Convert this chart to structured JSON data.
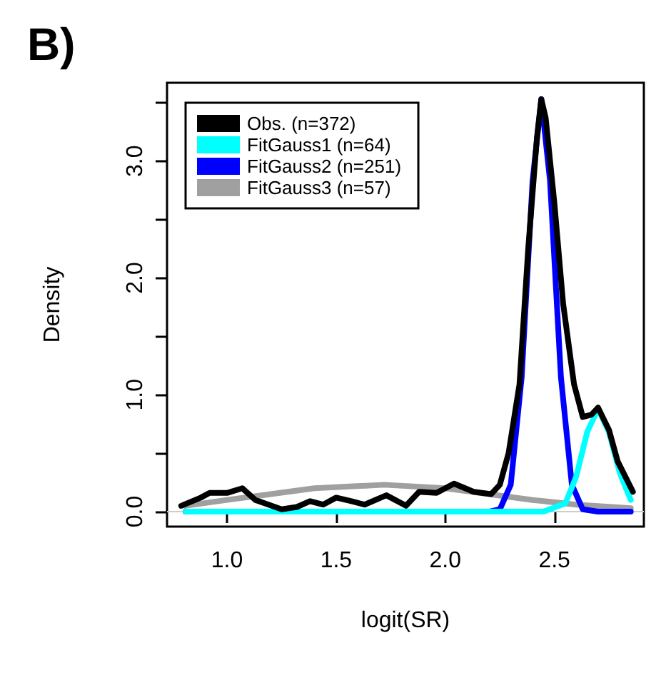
{
  "chart_data": {
    "type": "line",
    "title": "B)",
    "xlabel": "logit(SR)",
    "ylabel": "Density",
    "xlim": [
      0.725,
      2.91
    ],
    "ylim": [
      -0.128,
      3.67
    ],
    "xticks": [
      {
        "value": 1,
        "label": "1.0"
      },
      {
        "value": 1.5,
        "label": "1.5"
      },
      {
        "value": 2,
        "label": "2.0"
      },
      {
        "value": 2.5,
        "label": "2.5"
      }
    ],
    "yticks": [
      {
        "value": 0,
        "label": "0.0"
      },
      {
        "value": 0.5,
        "label": null
      },
      {
        "value": 1,
        "label": "1.0"
      },
      {
        "value": 1.5,
        "label": null
      },
      {
        "value": 2,
        "label": "2.0"
      },
      {
        "value": 2.5,
        "label": null
      },
      {
        "value": 3,
        "label": "3.0"
      },
      {
        "value": 3.5,
        "label": null
      }
    ],
    "grid": false,
    "legend": "top left",
    "marker": "none",
    "line_style": "solid",
    "ref_lines": [
      {
        "axis": "y",
        "value": 0,
        "color": "#cccccc"
      }
    ],
    "series": [
      {
        "name": "Obs. (n=372)",
        "color": "#000000",
        "x": [
          0.79,
          0.88,
          0.92,
          1.0,
          1.07,
          1.13,
          1.19,
          1.25,
          1.32,
          1.38,
          1.44,
          1.5,
          1.57,
          1.63,
          1.73,
          1.82,
          1.88,
          1.96,
          2.04,
          2.13,
          2.21,
          2.25,
          2.29,
          2.34,
          2.38,
          2.42,
          2.44,
          2.46,
          2.5,
          2.54,
          2.59,
          2.63,
          2.67,
          2.7,
          2.75,
          2.79,
          2.86
        ],
        "values": [
          0.05,
          0.12,
          0.16,
          0.16,
          0.2,
          0.1,
          0.06,
          0.02,
          0.04,
          0.09,
          0.06,
          0.12,
          0.09,
          0.06,
          0.14,
          0.05,
          0.17,
          0.16,
          0.24,
          0.17,
          0.15,
          0.23,
          0.5,
          1.09,
          2.25,
          3.2,
          3.53,
          3.37,
          2.64,
          1.78,
          1.09,
          0.81,
          0.83,
          0.89,
          0.7,
          0.43,
          0.17
        ]
      },
      {
        "name": "FitGauss1 (n=64)",
        "color": "#00ffff",
        "x": [
          0.81,
          2.2,
          2.45,
          2.55,
          2.6,
          2.65,
          2.7,
          2.75,
          2.8,
          2.85
        ],
        "values": [
          0,
          0,
          0,
          0.07,
          0.3,
          0.68,
          0.88,
          0.68,
          0.33,
          0.1
        ]
      },
      {
        "name": "FitGauss2 (n=251)",
        "color": "#0000ff",
        "x": [
          0.81,
          2.2,
          2.25,
          2.3,
          2.35,
          2.4,
          2.44,
          2.48,
          2.53,
          2.58,
          2.63,
          2.7,
          2.85
        ],
        "values": [
          0,
          0,
          0.02,
          0.23,
          1.15,
          2.83,
          3.53,
          2.83,
          1.15,
          0.23,
          0.02,
          0,
          0
        ]
      },
      {
        "name": "FitGauss3 (n=57)",
        "color": "#a0a0a0",
        "x": [
          0.81,
          1.0,
          1.2,
          1.4,
          1.72,
          2.0,
          2.2,
          2.4,
          2.6,
          2.85
        ],
        "values": [
          0.05,
          0.1,
          0.15,
          0.2,
          0.23,
          0.2,
          0.15,
          0.1,
          0.06,
          0.03
        ]
      }
    ]
  }
}
